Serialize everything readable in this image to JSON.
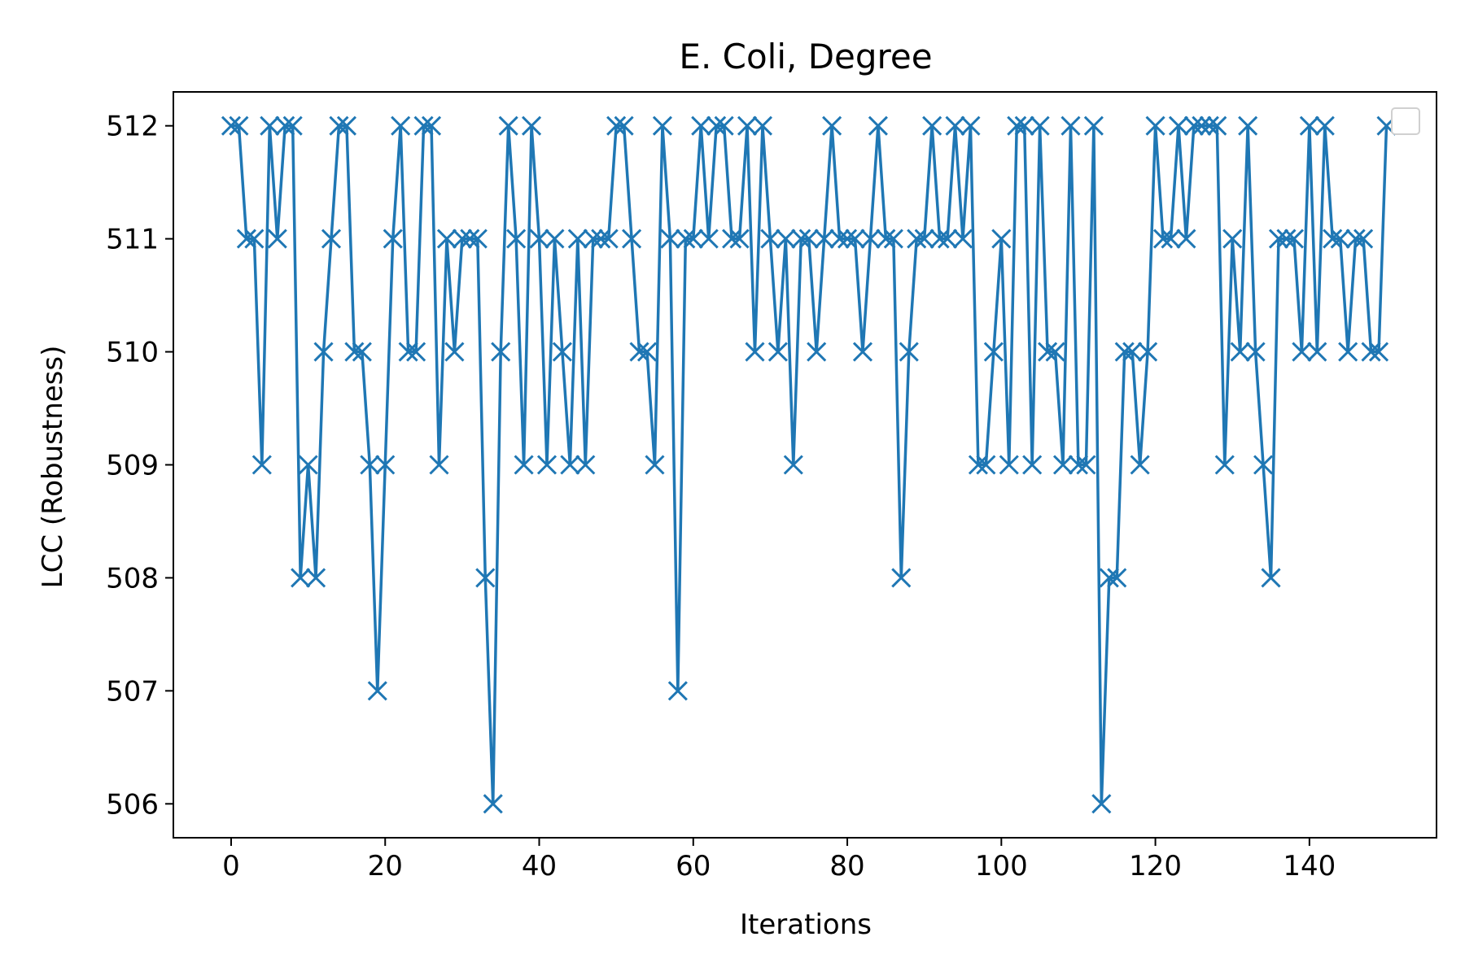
{
  "chart_data": {
    "type": "line",
    "title": "E. Coli, Degree",
    "xlabel": "Iterations",
    "ylabel": "LCC (Robustness)",
    "xlim": [
      -7.5,
      156.5
    ],
    "ylim": [
      505.7,
      512.3
    ],
    "x_ticks": [
      0,
      20,
      40,
      60,
      80,
      100,
      120,
      140
    ],
    "y_ticks": [
      506,
      507,
      508,
      509,
      510,
      511,
      512
    ],
    "grid": false,
    "legend": "top-right, empty",
    "marker": "x",
    "line_color": "#1f77b4",
    "series": [
      {
        "values": [
          512,
          512,
          511,
          511,
          509,
          512,
          511,
          512,
          512,
          508,
          509,
          508,
          510,
          511,
          512,
          512,
          510,
          510,
          509,
          507,
          509,
          511,
          512,
          510,
          510,
          512,
          512,
          509,
          511,
          510,
          511,
          511,
          511,
          508,
          506,
          510,
          512,
          511,
          509,
          512,
          511,
          509,
          511,
          510,
          509,
          511,
          509,
          511,
          511,
          511,
          512,
          512,
          511,
          510,
          510,
          509,
          512,
          511,
          507,
          511,
          511,
          512,
          511,
          512,
          512,
          511,
          511,
          512,
          510,
          512,
          511,
          510,
          511,
          509,
          511,
          511,
          510,
          511,
          512,
          511,
          511,
          511,
          510,
          511,
          512,
          511,
          511,
          508,
          510,
          511,
          511,
          512,
          511,
          511,
          512,
          511,
          512,
          509,
          509,
          510,
          511,
          509,
          512,
          512,
          509,
          512,
          510,
          510,
          509,
          512,
          509,
          509,
          512,
          506,
          508,
          508,
          510,
          510,
          509,
          510,
          512,
          511,
          511,
          512,
          511,
          512,
          512,
          512,
          512,
          509,
          511,
          510,
          512,
          510,
          509,
          508,
          511,
          511,
          511,
          510,
          512,
          510,
          512,
          511,
          511,
          510,
          511,
          511,
          510,
          510,
          512
        ]
      }
    ]
  }
}
